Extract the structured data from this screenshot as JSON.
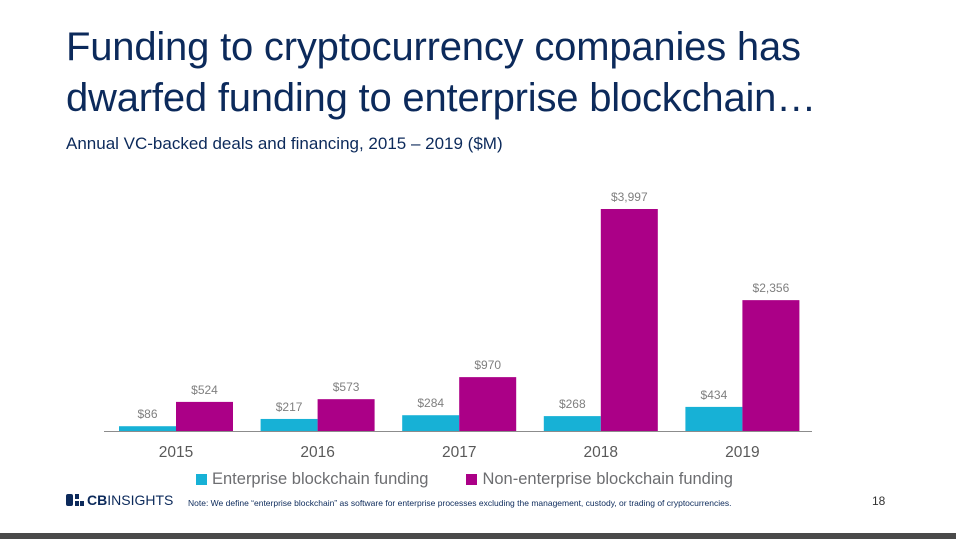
{
  "title": "Funding to cryptocurrency companies has dwarfed funding to enterprise blockchain…",
  "subtitle": "Annual VC-backed deals and financing, 2015 – 2019 ($M)",
  "logo": {
    "bold": "CB",
    "rest": "INSIGHTS"
  },
  "note": "Note: We define “enterprise blockchain” as software for enterprise processes excluding the management, custody, or trading of cryptocurrencies.",
  "page_number": "18",
  "chart_data": {
    "type": "bar",
    "title": "Annual VC-backed deals and financing, 2015 – 2019 ($M)",
    "categories": [
      "2015",
      "2016",
      "2017",
      "2018",
      "2019"
    ],
    "series": [
      {
        "name": "Enterprise blockchain funding",
        "color": "#17b1d6",
        "values": [
          86,
          217,
          284,
          268,
          434
        ],
        "labels": [
          "$86",
          "$217",
          "$284",
          "$268",
          "$434"
        ]
      },
      {
        "name": "Non-enterprise blockchain funding",
        "color": "#ab0087",
        "values": [
          524,
          573,
          970,
          3997,
          2356
        ],
        "labels": [
          "$524",
          "$573",
          "$970",
          "$3,997",
          "$2,356"
        ]
      }
    ],
    "ylim": [
      0,
      3997
    ],
    "grid": false,
    "legend": "bottom"
  }
}
